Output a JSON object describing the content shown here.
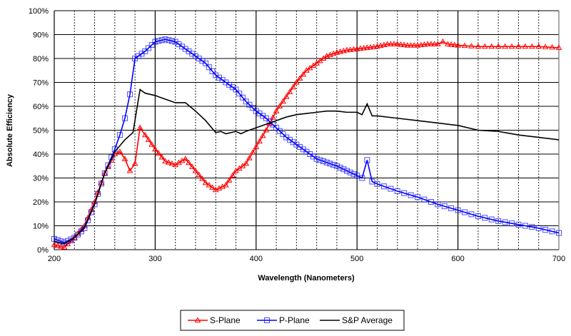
{
  "chart_data": {
    "type": "line",
    "title": "",
    "xlabel": "Wavelength (Nanometers)",
    "ylabel": "Absolute Efficiency",
    "xlim": [
      200,
      700
    ],
    "ylim": [
      0,
      100
    ],
    "x_ticks": [
      "200",
      "300",
      "400",
      "500",
      "600",
      "700"
    ],
    "y_ticks": [
      "0%",
      "10%",
      "20%",
      "30%",
      "40%",
      "50%",
      "60%",
      "70%",
      "80%",
      "90%",
      "100%"
    ],
    "grid": true,
    "legend_position": "bottom",
    "series": [
      {
        "name": "S-Plane",
        "color": "#ff0000",
        "marker": "triangle",
        "x": [
          200,
          210,
          220,
          230,
          240,
          250,
          260,
          265,
          270,
          275,
          280,
          285,
          290,
          300,
          310,
          320,
          330,
          340,
          350,
          360,
          370,
          380,
          390,
          400,
          410,
          420,
          430,
          440,
          450,
          460,
          470,
          480,
          490,
          500,
          510,
          520,
          530,
          540,
          550,
          560,
          570,
          580,
          585,
          590,
          600,
          620,
          640,
          660,
          680,
          700
        ],
        "y": [
          2,
          1,
          5,
          10,
          20,
          32,
          40,
          41,
          38,
          33,
          36,
          51,
          48,
          42,
          37,
          35.5,
          38,
          33,
          28,
          25,
          27,
          33,
          36,
          43,
          50,
          58,
          64,
          70,
          75,
          78,
          81,
          82.5,
          83.5,
          84,
          84.5,
          85,
          86,
          86,
          85.5,
          85.5,
          86,
          86,
          87,
          86,
          85.5,
          85,
          85,
          85,
          85,
          84.5
        ]
      },
      {
        "name": "P-Plane",
        "color": "#0000ff",
        "marker": "square",
        "x": [
          200,
          210,
          220,
          230,
          240,
          250,
          260,
          265,
          270,
          275,
          280,
          290,
          300,
          310,
          320,
          330,
          340,
          350,
          360,
          370,
          380,
          390,
          400,
          410,
          420,
          430,
          440,
          450,
          460,
          470,
          480,
          490,
          500,
          505,
          510,
          515,
          520,
          540,
          560,
          580,
          600,
          620,
          640,
          660,
          680,
          700
        ],
        "y": [
          4.5,
          3,
          5,
          9,
          19,
          32,
          42,
          48,
          55,
          65,
          80,
          83,
          87,
          88,
          87,
          84,
          81,
          78,
          73,
          70,
          67,
          62,
          58,
          55,
          51,
          47,
          44,
          41,
          38,
          36.5,
          35,
          33,
          31,
          30,
          37.5,
          28.5,
          27.5,
          24.5,
          22,
          19,
          16.5,
          14,
          12,
          10.5,
          9,
          7
        ]
      },
      {
        "name": "S&P Average",
        "color": "#000000",
        "marker": "none",
        "x": [
          200,
          210,
          220,
          230,
          240,
          250,
          260,
          270,
          278,
          285,
          290,
          300,
          310,
          320,
          330,
          340,
          350,
          360,
          365,
          370,
          380,
          385,
          390,
          400,
          410,
          420,
          430,
          440,
          450,
          460,
          470,
          480,
          490,
          500,
          505,
          510,
          515,
          520,
          540,
          560,
          580,
          600,
          620,
          640,
          660,
          680,
          700
        ],
        "y": [
          3.5,
          2.5,
          5,
          9.5,
          19,
          32,
          41,
          46,
          49,
          67,
          65.5,
          64.5,
          63,
          61.5,
          61.5,
          58,
          54,
          49,
          49.5,
          48.5,
          49.5,
          48.5,
          49.5,
          51,
          52.5,
          54,
          55.5,
          56.5,
          57,
          57.5,
          58,
          58,
          57.5,
          57.5,
          56.5,
          61,
          56,
          56,
          55,
          54,
          53,
          52,
          50,
          49.5,
          48,
          47,
          46
        ]
      }
    ]
  }
}
